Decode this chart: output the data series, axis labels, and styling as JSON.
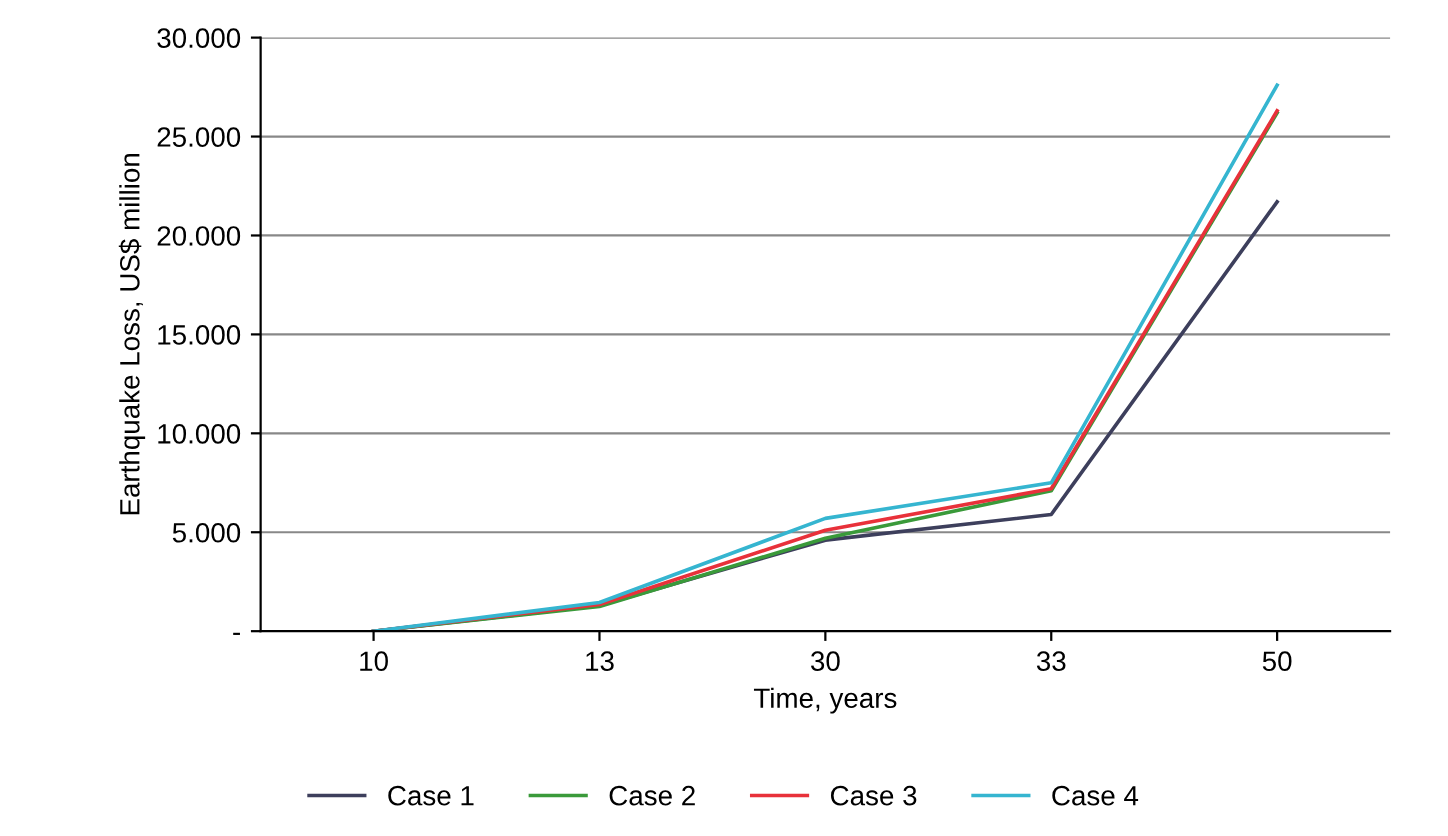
{
  "chart_data": {
    "type": "line",
    "xlabel": "Time, years",
    "ylabel": "Earthquake Loss, US$ million",
    "categories": [
      "10",
      "13",
      "30",
      "33",
      "50"
    ],
    "series": [
      {
        "name": "Case 1",
        "color": "#3d3f5c",
        "values": [
          0,
          1300,
          4600,
          5900,
          21700
        ]
      },
      {
        "name": "Case 2",
        "color": "#3a9a3a",
        "values": [
          0,
          1250,
          4700,
          7100,
          26200
        ]
      },
      {
        "name": "Case 3",
        "color": "#e8313a",
        "values": [
          0,
          1350,
          5100,
          7200,
          26300
        ]
      },
      {
        "name": "Case 4",
        "color": "#35b5d0",
        "values": [
          0,
          1450,
          5700,
          7500,
          27600
        ]
      }
    ],
    "ylim": [
      0,
      30000
    ],
    "yticks": [
      {
        "value": 0,
        "label": "-"
      },
      {
        "value": 5000,
        "label": "5.000"
      },
      {
        "value": 10000,
        "label": "10.000"
      },
      {
        "value": 15000,
        "label": "15.000"
      },
      {
        "value": 20000,
        "label": "20.000"
      },
      {
        "value": 25000,
        "label": "25.000"
      },
      {
        "value": 30000,
        "label": "30.000"
      }
    ],
    "grid": "y",
    "legend": "bottom",
    "marker": "none",
    "line_style": "solid"
  }
}
